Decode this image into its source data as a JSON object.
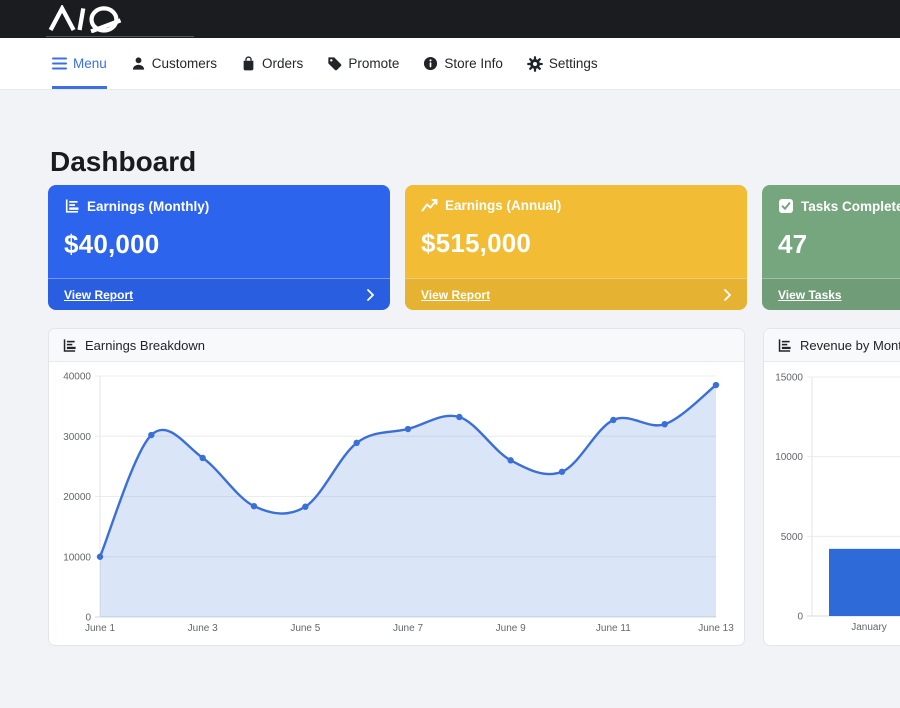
{
  "brand": {
    "name": "AQ",
    "icon": "aq-logo"
  },
  "nav": {
    "items": [
      {
        "label": "Menu",
        "icon": "hamburger-icon",
        "active": true
      },
      {
        "label": "Customers",
        "icon": "person-icon",
        "active": false
      },
      {
        "label": "Orders",
        "icon": "shopping-bag-icon",
        "active": false
      },
      {
        "label": "Promote",
        "icon": "tag-icon",
        "active": false
      },
      {
        "label": "Store Info",
        "icon": "info-circle-icon",
        "active": false
      },
      {
        "label": "Settings",
        "icon": "gear-icon",
        "active": false
      }
    ]
  },
  "page": {
    "title": "Dashboard"
  },
  "stat_cards": [
    {
      "title": "Earnings (Monthly)",
      "value": "$40,000",
      "link_label": "View Report",
      "icon": "bar-chart-icon",
      "color": "#2d64ee"
    },
    {
      "title": "Earnings (Annual)",
      "value": "$515,000",
      "link_label": "View Report",
      "icon": "line-chart-icon",
      "color": "#f2bc34"
    },
    {
      "title": "Tasks Completed",
      "value": "47",
      "link_label": "View Tasks",
      "icon": "check-square-icon",
      "color": "#76a67e"
    }
  ],
  "colors": {
    "topbar_bg": "#1b1c1f",
    "page_bg": "#f1f3f7",
    "nav_active_blue": "#3a6fe8",
    "chart_line_blue": "#3a6fd8",
    "chart_bar_blue": "#2f6ad9"
  },
  "chart_data": [
    {
      "type": "line",
      "title": "Earnings Breakdown",
      "x": [
        "June 1",
        "June 2",
        "June 3",
        "June 4",
        "June 5",
        "June 6",
        "June 7",
        "June 8",
        "June 9",
        "June 10",
        "June 11",
        "June 12",
        "June 13"
      ],
      "values": [
        10000,
        30200,
        26400,
        18400,
        18300,
        28900,
        31200,
        33200,
        26000,
        24100,
        32700,
        32000,
        38500
      ],
      "xtick_labels": [
        "June 1",
        "June 3",
        "June 5",
        "June 7",
        "June 9",
        "June 11",
        "June 13"
      ],
      "ylim": [
        0,
        40000
      ],
      "yticks": [
        0,
        10000,
        20000,
        30000,
        40000
      ],
      "grid": true,
      "legend": false,
      "line_color": "#3a6fd8",
      "point_color": "#3a6fd8",
      "fill_color": "rgba(58,111,216,0.18)",
      "smooth": true
    },
    {
      "type": "bar",
      "title": "Revenue by Month",
      "categories": [
        "January"
      ],
      "values": [
        4215
      ],
      "ylim": [
        0,
        15000
      ],
      "yticks": [
        0,
        5000,
        10000,
        15000
      ],
      "grid": true,
      "legend": false,
      "bar_color": "#2f6ad9",
      "clipped_right": true
    }
  ]
}
